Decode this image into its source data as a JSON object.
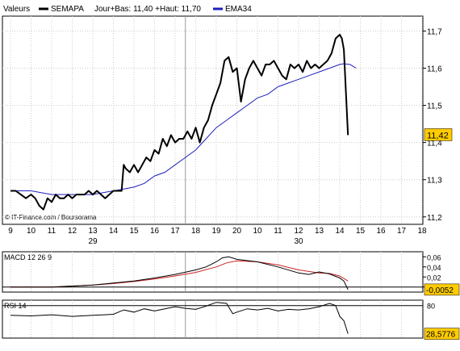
{
  "legend": {
    "label": "Valeurs",
    "series_name": "SEMAPA",
    "range_text": "Jour+Bas: 11,40 +Haut: 11,70",
    "ema_name": "EMA34"
  },
  "watermark": "© IT-Finance.com / Boursorama",
  "colors": {
    "price": "#000000",
    "ema": "#1f1fbf",
    "macd_signal": "#cc2222",
    "badge_bg": "#ffcc00",
    "grid": "#cccccc",
    "session_divider": "#999999"
  },
  "chart_data": [
    {
      "type": "line",
      "panel": "price",
      "x_tick_labels": [
        "9",
        "10",
        "11",
        "12",
        "13",
        "14",
        "15",
        "16",
        "17",
        "18",
        "19",
        "20",
        "10",
        "11",
        "12",
        "13",
        "14",
        "15",
        "16",
        "17",
        "18",
        "19"
      ],
      "day_labels": [
        "29",
        "30"
      ],
      "y_ticks": [
        11.2,
        11.3,
        11.4,
        11.5,
        11.6,
        11.7
      ],
      "y_tick_labels": [
        "11,2",
        "11,3",
        "11,4",
        "11,5",
        "11,6",
        "11,7"
      ],
      "ylim": [
        11.18,
        11.74
      ],
      "xlim": [
        0,
        21.5
      ],
      "last_value_label": "11,42",
      "grid": true,
      "series": [
        {
          "name": "SEMAPA",
          "x": [
            0,
            0.25,
            0.5,
            0.75,
            1,
            1.2,
            1.4,
            1.6,
            1.8,
            2,
            2.2,
            2.4,
            2.6,
            2.8,
            3,
            3.2,
            3.4,
            3.6,
            3.8,
            4,
            4.2,
            4.4,
            4.6,
            4.8,
            5,
            5.2,
            5.4,
            5.5,
            5.6,
            5.8,
            6,
            6.2,
            6.4,
            6.6,
            6.8,
            7,
            7.2,
            7.4,
            7.6,
            7.8,
            8,
            8.2,
            8.4,
            8.6,
            8.8,
            9,
            9.2,
            9.4,
            9.6,
            9.8,
            10,
            10.2,
            10.4,
            10.6,
            10.8,
            11,
            11.2,
            11.4,
            11.6,
            11.8,
            12,
            12.2,
            12.4,
            12.6,
            12.8,
            13,
            13.2,
            13.4,
            13.6,
            13.8,
            14,
            14.2,
            14.4,
            14.6,
            14.8,
            15,
            15.2,
            15.4,
            15.6,
            15.8,
            16,
            16.1,
            16.2,
            16.4
          ],
          "values": [
            11.27,
            11.27,
            11.26,
            11.25,
            11.26,
            11.25,
            11.23,
            11.22,
            11.25,
            11.24,
            11.26,
            11.25,
            11.25,
            11.26,
            11.25,
            11.26,
            11.26,
            11.26,
            11.27,
            11.26,
            11.27,
            11.26,
            11.25,
            11.26,
            11.27,
            11.27,
            11.27,
            11.34,
            11.33,
            11.32,
            11.34,
            11.32,
            11.34,
            11.36,
            11.35,
            11.38,
            11.37,
            11.41,
            11.39,
            11.42,
            11.4,
            11.41,
            11.41,
            11.43,
            11.41,
            11.44,
            11.4,
            11.44,
            11.46,
            11.5,
            11.53,
            11.56,
            11.62,
            11.63,
            11.59,
            11.6,
            11.51,
            11.57,
            11.6,
            11.62,
            11.6,
            11.58,
            11.61,
            11.61,
            11.62,
            11.6,
            11.58,
            11.57,
            11.61,
            11.6,
            11.61,
            11.59,
            11.62,
            11.6,
            11.61,
            11.6,
            11.61,
            11.62,
            11.64,
            11.68,
            11.69,
            11.68,
            11.65,
            11.42
          ]
        },
        {
          "name": "EMA34",
          "x": [
            0,
            1,
            2,
            3,
            4,
            4.5,
            5,
            5.5,
            6,
            6.5,
            7,
            7.5,
            8,
            8.5,
            9,
            9.5,
            10,
            10.5,
            11,
            11.5,
            12,
            12.5,
            13,
            13.5,
            14,
            14.5,
            15,
            15.5,
            16,
            16.2,
            16.5,
            16.8
          ],
          "values": [
            11.27,
            11.27,
            11.26,
            11.26,
            11.26,
            11.265,
            11.27,
            11.275,
            11.28,
            11.29,
            11.31,
            11.32,
            11.34,
            11.36,
            11.38,
            11.41,
            11.44,
            11.46,
            11.48,
            11.5,
            11.52,
            11.53,
            11.55,
            11.56,
            11.57,
            11.58,
            11.59,
            11.6,
            11.61,
            11.612,
            11.61,
            11.6
          ]
        }
      ]
    },
    {
      "type": "line",
      "panel": "macd",
      "title": "MACD 12 26 9",
      "y_ticks": [
        0.06,
        0.04,
        0.02,
        0
      ],
      "y_tick_labels": [
        "0,06",
        "0,04",
        "0,02",
        "0"
      ],
      "ylim": [
        -0.01,
        0.07
      ],
      "xlim": [
        0,
        21.5
      ],
      "last_value_label": "-0,0052",
      "series": [
        {
          "name": "MACD",
          "x": [
            0,
            1,
            2,
            3,
            4,
            5,
            6,
            7,
            8,
            9,
            9.5,
            10,
            10.3,
            10.6,
            11,
            12,
            13,
            14,
            14.5,
            15,
            15.5,
            16,
            16.2,
            16.4
          ],
          "values": [
            0.0,
            0.0,
            0.0,
            0.002,
            0.004,
            0.008,
            0.012,
            0.018,
            0.025,
            0.034,
            0.04,
            0.05,
            0.058,
            0.06,
            0.055,
            0.05,
            0.04,
            0.028,
            0.025,
            0.03,
            0.026,
            0.018,
            0.012,
            -0.005
          ]
        },
        {
          "name": "Signal",
          "x": [
            0,
            2,
            4,
            5,
            6,
            7,
            8,
            9,
            10,
            10.5,
            11,
            12,
            13,
            14,
            15,
            15.5,
            16,
            16.4
          ],
          "values": [
            0.0,
            0.0,
            0.004,
            0.007,
            0.011,
            0.016,
            0.022,
            0.029,
            0.04,
            0.048,
            0.052,
            0.05,
            0.044,
            0.034,
            0.028,
            0.027,
            0.022,
            0.012
          ]
        }
      ]
    },
    {
      "type": "line",
      "panel": "rsi",
      "title": "RSI 14",
      "y_ticks": [
        80
      ],
      "y_tick_labels": [
        "80"
      ],
      "ylim": [
        20,
        90
      ],
      "xlim": [
        0,
        21.5
      ],
      "last_value_label": "28,5776",
      "series": [
        {
          "name": "RSI",
          "x": [
            0,
            1,
            2,
            3,
            4,
            5,
            5.5,
            6,
            6.5,
            7,
            7.5,
            8,
            8.5,
            9,
            9.5,
            10,
            10.5,
            10.8,
            11,
            11.5,
            12,
            12.5,
            13,
            13.5,
            14,
            14.5,
            15,
            15.5,
            15.8,
            16,
            16.2,
            16.4
          ],
          "values": [
            62,
            61,
            63,
            60,
            62,
            64,
            72,
            68,
            74,
            70,
            74,
            78,
            75,
            73,
            79,
            86,
            84,
            65,
            68,
            74,
            72,
            75,
            70,
            73,
            72,
            74,
            78,
            84,
            80,
            60,
            52,
            28
          ]
        }
      ]
    }
  ]
}
